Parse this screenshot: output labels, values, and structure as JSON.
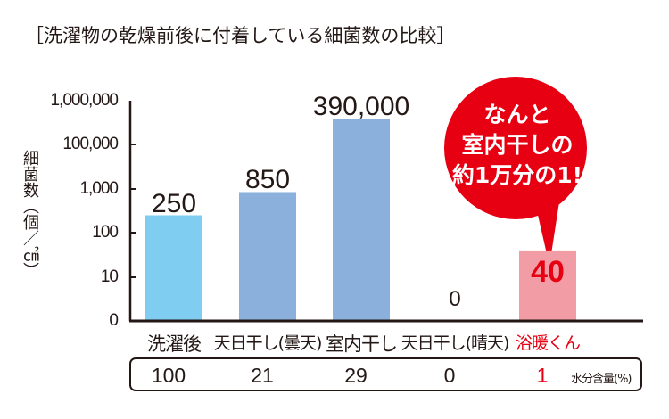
{
  "title": "［洗濯物の乾燥前後に付着している細菌数の比較］",
  "callout": {
    "lines": [
      "なんと",
      "室内干しの",
      "約1万分の1!"
    ],
    "color": "#e60012"
  },
  "colors": {
    "bar_light": "#7fcdf0",
    "bar_mid": "#8bb0dc",
    "bar_highlight": "#f29ca5",
    "highlight_text": "#e60012",
    "axis": "#231815"
  },
  "chart_data": {
    "type": "bar",
    "title": "［洗濯物の乾燥前後に付着している細菌数の比較］",
    "ylabel": "細菌数（個／㎠）",
    "yscale": "log",
    "yticks": [
      {
        "value": 0,
        "label": "0"
      },
      {
        "value": 10,
        "label": "10"
      },
      {
        "value": 100,
        "label": "100"
      },
      {
        "value": 1000,
        "label": "1,000"
      },
      {
        "value": 100000,
        "label": "100,000"
      },
      {
        "value": 1000000,
        "label": "1,000,000"
      }
    ],
    "categories": [
      "洗濯後",
      "天日干し(曇天)",
      "室内干し",
      "天日干し(晴天)",
      "浴暖くん"
    ],
    "values": [
      250,
      850,
      390000,
      0,
      40
    ],
    "value_labels": [
      "250",
      "850",
      "390,000",
      "0",
      "40"
    ],
    "highlight_index": 4,
    "moisture": {
      "label": "水分含量(%)",
      "values": [
        "100",
        "21",
        "29",
        "0",
        "1"
      ]
    }
  }
}
